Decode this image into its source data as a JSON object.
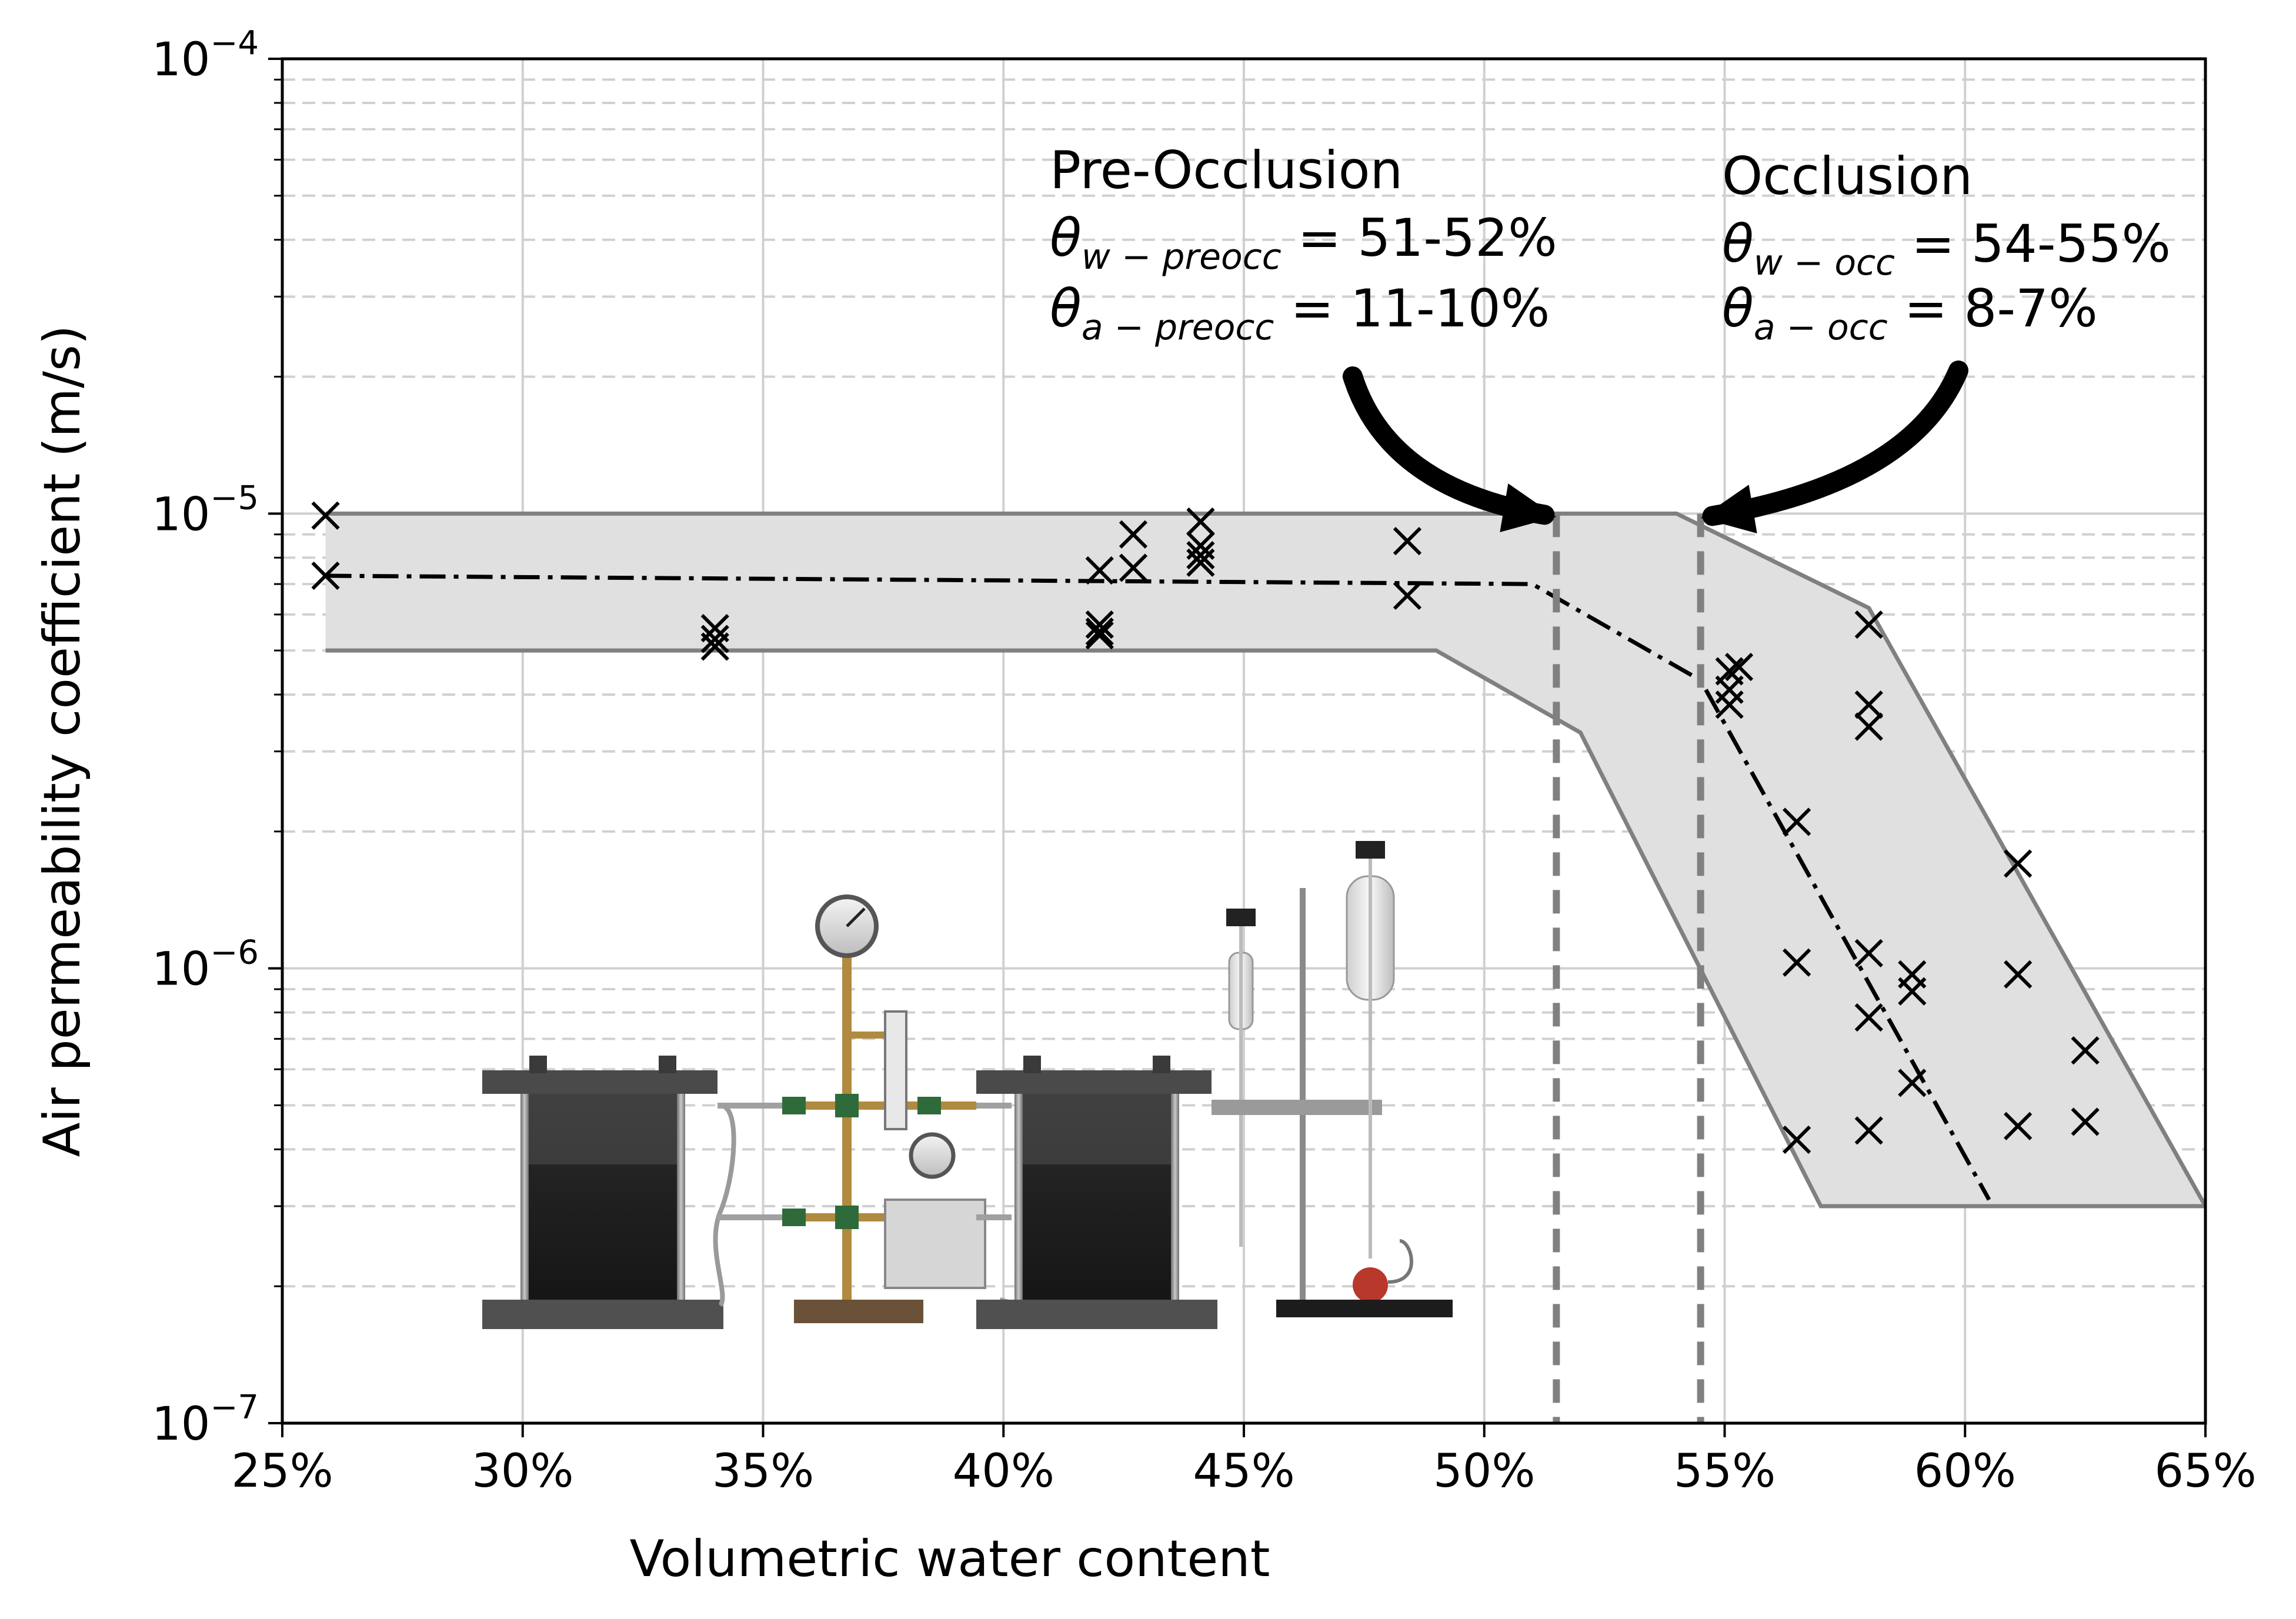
{
  "chart_data": {
    "type": "scatter",
    "title": "",
    "xlabel": "Volumetric water content",
    "ylabel": "Air permeability coefficient (m/s)",
    "x_unit": "fraction",
    "xlim": [
      0.25,
      0.65
    ],
    "ylim": [
      1e-07,
      0.0001
    ],
    "yscale": "log",
    "grid": true,
    "legend": "none",
    "x_ticks": [
      0.25,
      0.3,
      0.35,
      0.4,
      0.45,
      0.5,
      0.55,
      0.6,
      0.65
    ],
    "x_tick_labels": [
      "25%",
      "30%",
      "35%",
      "40%",
      "45%",
      "50%",
      "55%",
      "60%",
      "65%"
    ],
    "y_ticks": [
      {
        "value": 1e-07,
        "base": "10",
        "exp": "−7"
      },
      {
        "value": 1e-06,
        "base": "10",
        "exp": "−6"
      },
      {
        "value": 1e-05,
        "base": "10",
        "exp": "−5"
      },
      {
        "value": 0.0001,
        "base": "10",
        "exp": "−4"
      }
    ],
    "colors": {
      "markers": "#000000",
      "band_fill": "#e0e0e0",
      "band_edge": "#808080",
      "grid": "#d0d0d0",
      "threshold_line": "#808080"
    },
    "series": [
      {
        "kind": "markers",
        "marker": "x",
        "points": [
          [
            0.259,
            9.9e-06
          ],
          [
            0.259,
            7.3e-06
          ],
          [
            0.34,
            5.6e-06
          ],
          [
            0.34,
            5.3e-06
          ],
          [
            0.34,
            5.1e-06
          ],
          [
            0.42,
            7.5e-06
          ],
          [
            0.42,
            5.7e-06
          ],
          [
            0.42,
            5.5e-06
          ],
          [
            0.42,
            5.4e-06
          ],
          [
            0.427,
            9e-06
          ],
          [
            0.427,
            7.6e-06
          ],
          [
            0.441,
            9.6e-06
          ],
          [
            0.441,
            8.5e-06
          ],
          [
            0.441,
            8.1e-06
          ],
          [
            0.441,
            7.8e-06
          ],
          [
            0.484,
            8.7e-06
          ],
          [
            0.484,
            6.6e-06
          ],
          [
            0.551,
            4.5e-06
          ],
          [
            0.551,
            4.1e-06
          ],
          [
            0.551,
            3.8e-06
          ],
          [
            0.553,
            4.6e-06
          ],
          [
            0.565,
            2.1e-06
          ],
          [
            0.565,
            1.03e-06
          ],
          [
            0.565,
            4.2e-07
          ],
          [
            0.58,
            5.7e-06
          ],
          [
            0.58,
            3.8e-06
          ],
          [
            0.58,
            3.4e-06
          ],
          [
            0.58,
            1.08e-06
          ],
          [
            0.58,
            7.8e-07
          ],
          [
            0.58,
            4.4e-07
          ],
          [
            0.589,
            9.7e-07
          ],
          [
            0.589,
            8.9e-07
          ],
          [
            0.589,
            5.6e-07
          ],
          [
            0.611,
            1.7e-06
          ],
          [
            0.611,
            9.7e-07
          ],
          [
            0.611,
            4.5e-07
          ],
          [
            0.625,
            6.6e-07
          ],
          [
            0.625,
            4.6e-07
          ]
        ]
      },
      {
        "kind": "trend",
        "style": "dash-dot",
        "points": [
          [
            0.259,
            7.3e-06
          ],
          [
            0.51,
            7e-06
          ],
          [
            0.545,
            4.3e-06
          ],
          [
            0.605,
            3.1e-07
          ]
        ]
      }
    ],
    "band": {
      "upper": [
        [
          0.259,
          1e-05
        ],
        [
          0.54,
          1e-05
        ],
        [
          0.58,
          6.2e-06
        ],
        [
          0.65,
          3e-07
        ]
      ],
      "lower": [
        [
          0.259,
          5e-06
        ],
        [
          0.49,
          5e-06
        ],
        [
          0.52,
          3.3e-06
        ],
        [
          0.57,
          3e-07
        ],
        [
          0.65,
          3e-07
        ]
      ]
    },
    "thresholds": [
      0.515,
      0.545
    ],
    "annotations": [
      {
        "id": "pre-occlusion",
        "title": "Pre-Occlusion",
        "line1_sub": "w − preocc",
        "line1_value": " = 51-52%",
        "line2_sub": "a − preocc",
        "line2_value": " = 11-10%",
        "target": [
          0.515,
          1e-05
        ]
      },
      {
        "id": "occlusion",
        "title": "Occlusion",
        "line1_sub": "w − occ",
        "line1_value": " = 54-55%",
        "line2_sub": "a − occ",
        "line2_value": " = 8-7%",
        "target": [
          0.545,
          1e-05
        ]
      }
    ],
    "symbol_theta": "θ"
  }
}
